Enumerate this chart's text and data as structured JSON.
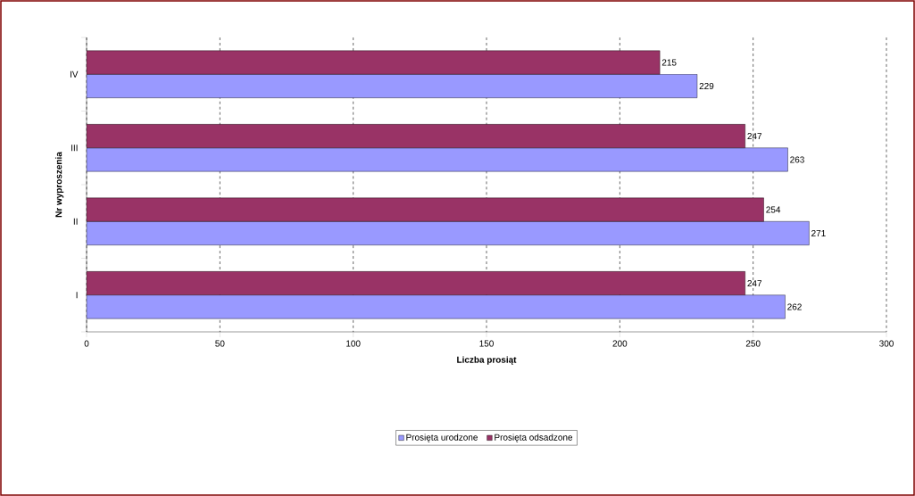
{
  "chart_data": {
    "type": "bar",
    "orientation": "horizontal",
    "xlabel": "Liczba prosiąt",
    "ylabel": "Nr wyproszenia",
    "categories": [
      "IV",
      "III",
      "II",
      "I"
    ],
    "series": [
      {
        "name": "Prosięta urodzone",
        "color": "#9999ff",
        "values": [
          229,
          263,
          271,
          262
        ]
      },
      {
        "name": "Prosięta odsadzone",
        "color": "#993366",
        "values": [
          215,
          247,
          254,
          247
        ]
      }
    ],
    "xlim": [
      0,
      300
    ],
    "xticks": [
      0,
      50,
      100,
      150,
      200,
      250,
      300
    ],
    "grid": "x",
    "legend": "bottom",
    "data_labels": true
  }
}
